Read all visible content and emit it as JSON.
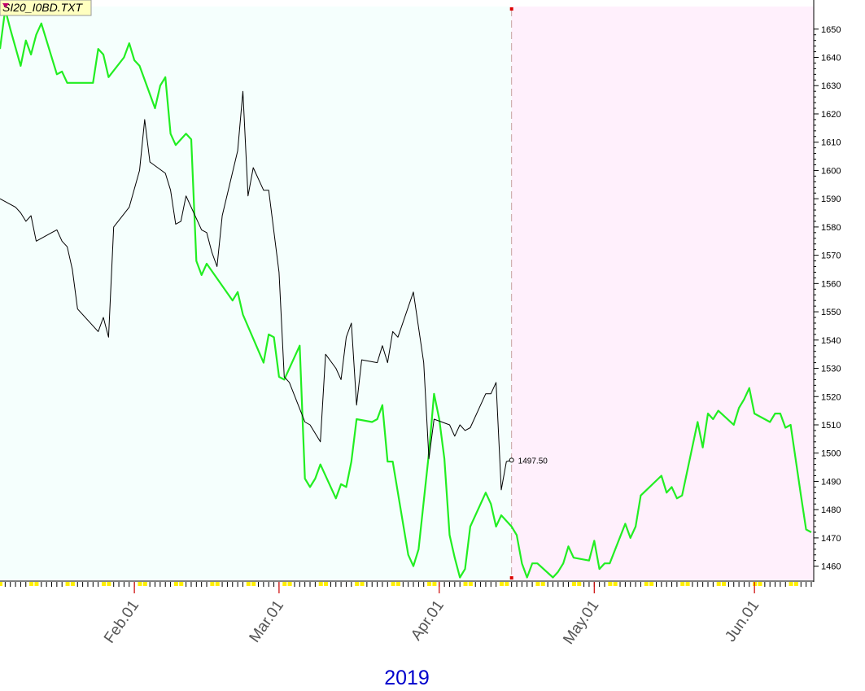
{
  "title_file": "SI20_I0BD.TXT",
  "year_label": "2019",
  "last_price_label": "1497.50",
  "colors": {
    "history_bg": "#f5fffd",
    "forecast_bg": "#fff0fc",
    "price_line": "#000000",
    "forecast_line": "#22ee22",
    "tick_yellow": "#ffee00",
    "year_text": "#0000cc",
    "marker_red": "#dd0000"
  },
  "chart_data": {
    "type": "line",
    "title": "",
    "xlabel": "",
    "ylabel": "",
    "ylim": [
      1455,
      1658
    ],
    "y_ticks": [
      1460,
      1470,
      1480,
      1490,
      1500,
      1510,
      1520,
      1530,
      1540,
      1550,
      1560,
      1570,
      1580,
      1590,
      1600,
      1610,
      1620,
      1630,
      1640,
      1650
    ],
    "x_ticks": [
      {
        "label": "Feb.01",
        "date": "2019-02-01"
      },
      {
        "label": "Mar.01",
        "date": "2019-03-01"
      },
      {
        "label": "Apr.01",
        "date": "2019-04-01"
      },
      {
        "label": "May.01",
        "date": "2019-05-01"
      },
      {
        "label": "Jun.01",
        "date": "2019-06-01"
      }
    ],
    "xlim": [
      "2019-01-06",
      "2019-06-12"
    ],
    "forecast_start": "2019-04-15",
    "last_price": {
      "date": "2019-04-15",
      "value": 1497.5
    },
    "grid": false,
    "series": [
      {
        "role": "price",
        "points": [
          [
            "2019-01-06",
            1590
          ],
          [
            "2019-01-09",
            1587
          ],
          [
            "2019-01-10",
            1585
          ],
          [
            "2019-01-11",
            1582
          ],
          [
            "2019-01-12",
            1584
          ],
          [
            "2019-01-13",
            1575
          ],
          [
            "2019-01-16",
            1578
          ],
          [
            "2019-01-17",
            1579
          ],
          [
            "2019-01-18",
            1575
          ],
          [
            "2019-01-19",
            1573
          ],
          [
            "2019-01-20",
            1565
          ],
          [
            "2019-01-21",
            1551
          ],
          [
            "2019-01-25",
            1543
          ],
          [
            "2019-01-26",
            1548
          ],
          [
            "2019-01-27",
            1541
          ],
          [
            "2019-01-28",
            1580
          ],
          [
            "2019-01-31",
            1587
          ],
          [
            "2019-02-02",
            1600
          ],
          [
            "2019-02-03",
            1618
          ],
          [
            "2019-02-04",
            1603
          ],
          [
            "2019-02-07",
            1599
          ],
          [
            "2019-02-08",
            1593
          ],
          [
            "2019-02-09",
            1581
          ],
          [
            "2019-02-10",
            1582
          ],
          [
            "2019-02-11",
            1591
          ],
          [
            "2019-02-14",
            1579
          ],
          [
            "2019-02-15",
            1578
          ],
          [
            "2019-02-16",
            1571
          ],
          [
            "2019-02-17",
            1566
          ],
          [
            "2019-02-18",
            1584
          ],
          [
            "2019-02-21",
            1607
          ],
          [
            "2019-02-22",
            1628
          ],
          [
            "2019-02-23",
            1591
          ],
          [
            "2019-02-24",
            1601
          ],
          [
            "2019-02-26",
            1593
          ],
          [
            "2019-02-27",
            1593
          ],
          [
            "2019-03-01",
            1564
          ],
          [
            "2019-03-02",
            1527
          ],
          [
            "2019-03-03",
            1525
          ],
          [
            "2019-03-06",
            1511
          ],
          [
            "2019-03-07",
            1510
          ],
          [
            "2019-03-09",
            1504
          ],
          [
            "2019-03-10",
            1535
          ],
          [
            "2019-03-12",
            1530
          ],
          [
            "2019-03-13",
            1526
          ],
          [
            "2019-03-14",
            1541
          ],
          [
            "2019-03-15",
            1546
          ],
          [
            "2019-03-16",
            1517
          ],
          [
            "2019-03-17",
            1533
          ],
          [
            "2019-03-20",
            1532
          ],
          [
            "2019-03-21",
            1538
          ],
          [
            "2019-03-22",
            1532
          ],
          [
            "2019-03-23",
            1543
          ],
          [
            "2019-03-24",
            1541
          ],
          [
            "2019-03-27",
            1557
          ],
          [
            "2019-03-29",
            1532
          ],
          [
            "2019-03-30",
            1498
          ],
          [
            "2019-03-31",
            1512
          ],
          [
            "2019-04-03",
            1510
          ],
          [
            "2019-04-04",
            1506
          ],
          [
            "2019-04-05",
            1510
          ],
          [
            "2019-04-06",
            1508
          ],
          [
            "2019-04-07",
            1509
          ],
          [
            "2019-04-10",
            1521
          ],
          [
            "2019-04-11",
            1521
          ],
          [
            "2019-04-12",
            1525
          ],
          [
            "2019-04-13",
            1487
          ],
          [
            "2019-04-14",
            1497
          ],
          [
            "2019-04-15",
            1497.5
          ]
        ]
      },
      {
        "role": "forecast",
        "points": [
          [
            "2019-01-06",
            1643
          ],
          [
            "2019-01-07",
            1657
          ],
          [
            "2019-01-08",
            1650
          ],
          [
            "2019-01-10",
            1637
          ],
          [
            "2019-01-11",
            1646
          ],
          [
            "2019-01-12",
            1641
          ],
          [
            "2019-01-13",
            1648
          ],
          [
            "2019-01-14",
            1652
          ],
          [
            "2019-01-17",
            1634
          ],
          [
            "2019-01-18",
            1635
          ],
          [
            "2019-01-19",
            1631
          ],
          [
            "2019-01-24",
            1631
          ],
          [
            "2019-01-25",
            1643
          ],
          [
            "2019-01-26",
            1641
          ],
          [
            "2019-01-27",
            1633
          ],
          [
            "2019-01-30",
            1640
          ],
          [
            "2019-01-31",
            1645
          ],
          [
            "2019-02-01",
            1639
          ],
          [
            "2019-02-02",
            1637
          ],
          [
            "2019-02-05",
            1622
          ],
          [
            "2019-02-06",
            1630
          ],
          [
            "2019-02-07",
            1633
          ],
          [
            "2019-02-08",
            1613
          ],
          [
            "2019-02-09",
            1609
          ],
          [
            "2019-02-11",
            1613
          ],
          [
            "2019-02-12",
            1611
          ],
          [
            "2019-02-13",
            1568
          ],
          [
            "2019-02-14",
            1563
          ],
          [
            "2019-02-15",
            1567
          ],
          [
            "2019-02-20",
            1554
          ],
          [
            "2019-02-21",
            1557
          ],
          [
            "2019-02-22",
            1549
          ],
          [
            "2019-02-26",
            1532
          ],
          [
            "2019-02-27",
            1542
          ],
          [
            "2019-02-28",
            1541
          ],
          [
            "2019-03-01",
            1527
          ],
          [
            "2019-03-02",
            1526
          ],
          [
            "2019-03-05",
            1538
          ],
          [
            "2019-03-06",
            1491
          ],
          [
            "2019-03-07",
            1488
          ],
          [
            "2019-03-08",
            1491
          ],
          [
            "2019-03-09",
            1496
          ],
          [
            "2019-03-12",
            1484
          ],
          [
            "2019-03-13",
            1489
          ],
          [
            "2019-03-14",
            1488
          ],
          [
            "2019-03-15",
            1497
          ],
          [
            "2019-03-16",
            1512
          ],
          [
            "2019-03-19",
            1511
          ],
          [
            "2019-03-20",
            1512
          ],
          [
            "2019-03-21",
            1517
          ],
          [
            "2019-03-22",
            1497
          ],
          [
            "2019-03-23",
            1497
          ],
          [
            "2019-03-26",
            1464
          ],
          [
            "2019-03-27",
            1460
          ],
          [
            "2019-03-28",
            1466
          ],
          [
            "2019-03-30",
            1500
          ],
          [
            "2019-03-31",
            1521
          ],
          [
            "2019-04-01",
            1512
          ],
          [
            "2019-04-02",
            1498
          ],
          [
            "2019-04-03",
            1471
          ],
          [
            "2019-04-04",
            1463
          ],
          [
            "2019-04-05",
            1456
          ],
          [
            "2019-04-06",
            1459
          ],
          [
            "2019-04-07",
            1474
          ],
          [
            "2019-04-10",
            1486
          ],
          [
            "2019-04-11",
            1482
          ],
          [
            "2019-04-12",
            1474
          ],
          [
            "2019-04-13",
            1478
          ],
          [
            "2019-04-15",
            1474
          ],
          [
            "2019-04-16",
            1471
          ],
          [
            "2019-04-17",
            1461
          ],
          [
            "2019-04-18",
            1456
          ],
          [
            "2019-04-19",
            1461
          ],
          [
            "2019-04-20",
            1461
          ],
          [
            "2019-04-23",
            1456
          ],
          [
            "2019-04-24",
            1458
          ],
          [
            "2019-04-25",
            1461
          ],
          [
            "2019-04-26",
            1467
          ],
          [
            "2019-04-27",
            1463
          ],
          [
            "2019-04-30",
            1462
          ],
          [
            "2019-05-01",
            1469
          ],
          [
            "2019-05-02",
            1459
          ],
          [
            "2019-05-03",
            1461
          ],
          [
            "2019-05-04",
            1461
          ],
          [
            "2019-05-07",
            1475
          ],
          [
            "2019-05-08",
            1470
          ],
          [
            "2019-05-09",
            1474
          ],
          [
            "2019-05-10",
            1485
          ],
          [
            "2019-05-14",
            1492
          ],
          [
            "2019-05-15",
            1486
          ],
          [
            "2019-05-16",
            1488
          ],
          [
            "2019-05-17",
            1484
          ],
          [
            "2019-05-18",
            1485
          ],
          [
            "2019-05-21",
            1511
          ],
          [
            "2019-05-22",
            1502
          ],
          [
            "2019-05-23",
            1514
          ],
          [
            "2019-05-24",
            1512
          ],
          [
            "2019-05-25",
            1515
          ],
          [
            "2019-05-28",
            1510
          ],
          [
            "2019-05-29",
            1516
          ],
          [
            "2019-05-30",
            1519
          ],
          [
            "2019-05-31",
            1523
          ],
          [
            "2019-06-01",
            1514
          ],
          [
            "2019-06-04",
            1511
          ],
          [
            "2019-06-05",
            1514
          ],
          [
            "2019-06-06",
            1514
          ],
          [
            "2019-06-07",
            1509
          ],
          [
            "2019-06-08",
            1510
          ],
          [
            "2019-06-10",
            1485
          ],
          [
            "2019-06-11",
            1473
          ],
          [
            "2019-06-12",
            1472
          ]
        ]
      }
    ]
  }
}
